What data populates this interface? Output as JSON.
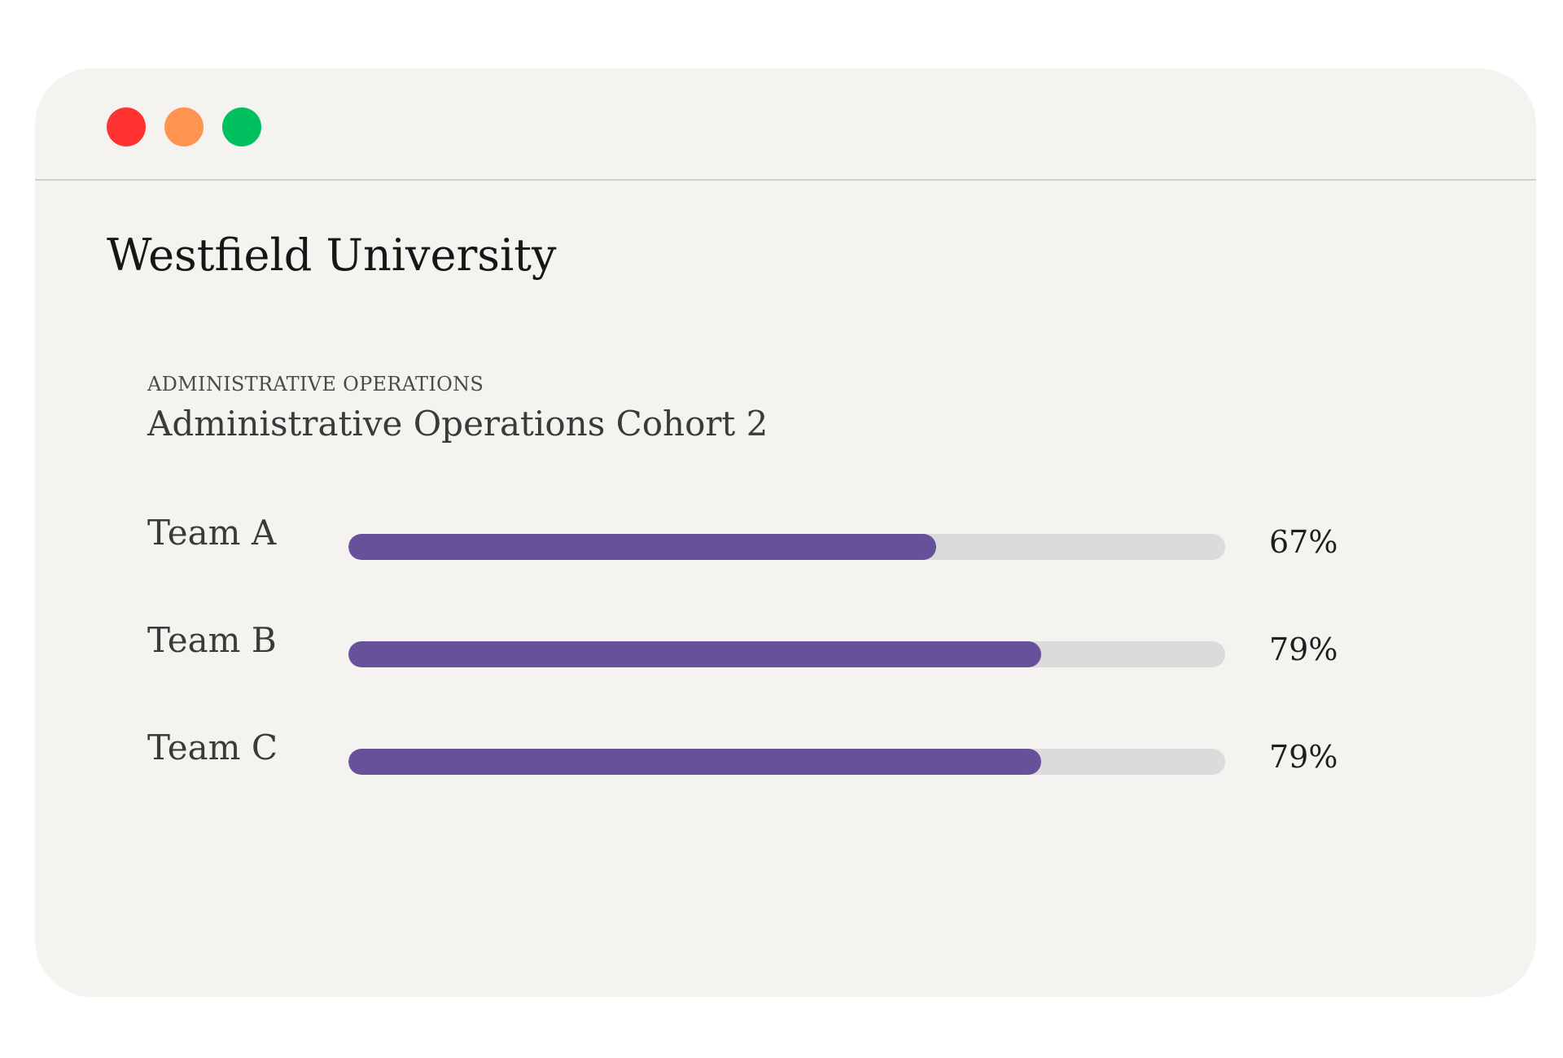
{
  "window": {
    "controls": [
      {
        "name": "close",
        "color": "#ff3333"
      },
      {
        "name": "minimize",
        "color": "#ff9450"
      },
      {
        "name": "maximize",
        "color": "#00c060"
      }
    ]
  },
  "header": {
    "title": "Westfield University"
  },
  "section": {
    "eyebrow": "ADMINISTRATIVE OPERATIONS",
    "title": "Administrative Operations Cohort 2"
  },
  "teams": [
    {
      "label": "Team A",
      "value_text": "67%",
      "value": 67
    },
    {
      "label": "Team B",
      "value_text": "79%",
      "value": 79
    },
    {
      "label": "Team C",
      "value_text": "79%",
      "value": 79
    }
  ],
  "colors": {
    "bar_fill": "#66519a",
    "bar_track": "#dbdbdb",
    "window_bg": "#f4f3ef"
  }
}
